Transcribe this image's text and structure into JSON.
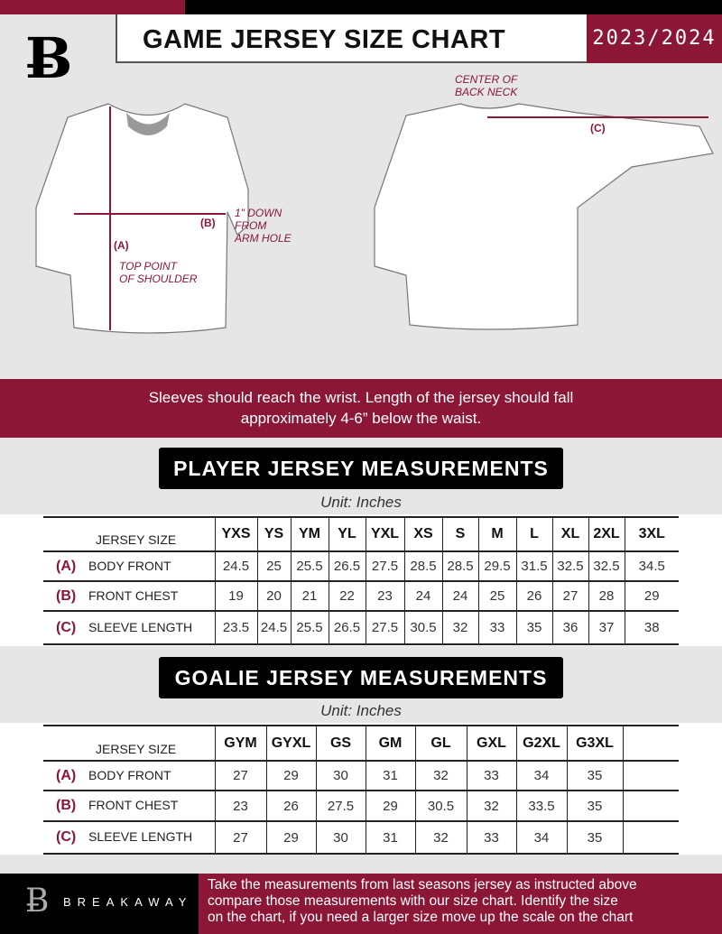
{
  "header": {
    "title": "GAME JERSEY SIZE CHART",
    "season": "2023/2024",
    "logo_letter": "B"
  },
  "diagram": {
    "label_a": "(A)",
    "label_a_note": [
      "TOP POINT",
      "OF SHOULDER"
    ],
    "label_b": "(B)",
    "label_b_note": [
      "1\" DOWN",
      "FROM",
      "ARM HOLE"
    ],
    "label_c": "(C)",
    "label_c_note": [
      "CENTER OF",
      "BACK NECK"
    ]
  },
  "note": [
    "Sleeves should reach the wrist. Length of the jersey should fall",
    "approximately 4-6” below the waist."
  ],
  "player": {
    "title": "PLAYER JERSEY MEASUREMENTS",
    "unit": "Unit: Inches",
    "size_header": "JERSEY SIZE",
    "sizes": [
      "YXS",
      "YS",
      "YM",
      "YL",
      "YXL",
      "XS",
      "S",
      "M",
      "L",
      "XL",
      "2XL",
      "3XL"
    ],
    "rows": [
      {
        "letter": "(A)",
        "label": "BODY FRONT",
        "values": [
          "24.5",
          "25",
          "25.5",
          "26.5",
          "27.5",
          "28.5",
          "28.5",
          "29.5",
          "31.5",
          "32.5",
          "32.5",
          "34.5"
        ]
      },
      {
        "letter": "(B)",
        "label": "FRONT CHEST",
        "values": [
          "19",
          "20",
          "21",
          "22",
          "23",
          "24",
          "24",
          "25",
          "26",
          "27",
          "28",
          "29"
        ]
      },
      {
        "letter": "(C)",
        "label": "SLEEVE LENGTH",
        "values": [
          "23.5",
          "24.5",
          "25.5",
          "26.5",
          "27.5",
          "30.5",
          "32",
          "33",
          "35",
          "36",
          "37",
          "38"
        ]
      }
    ]
  },
  "goalie": {
    "title": "GOALIE JERSEY MEASUREMENTS",
    "unit": "Unit: Inches",
    "size_header": "JERSEY SIZE",
    "sizes": [
      "GYM",
      "GYXL",
      "GS",
      "GM",
      "GL",
      "GXL",
      "G2XL",
      "G3XL",
      ""
    ],
    "rows": [
      {
        "letter": "(A)",
        "label": "BODY FRONT",
        "values": [
          "27",
          "29",
          "30",
          "31",
          "32",
          "33",
          "34",
          "35",
          ""
        ]
      },
      {
        "letter": "(B)",
        "label": "FRONT CHEST",
        "values": [
          "23",
          "26",
          "27.5",
          "29",
          "30.5",
          "32",
          "33.5",
          "35",
          ""
        ]
      },
      {
        "letter": "(C)",
        "label": "SLEEVE LENGTH",
        "values": [
          "27",
          "29",
          "30",
          "31",
          "32",
          "33",
          "34",
          "35",
          ""
        ]
      }
    ]
  },
  "footer": {
    "brand": "BREAKAWAY",
    "text": [
      "Take the measurements from last seasons jersey as instructed above",
      "compare those measurements  with our size chart. Identify the size",
      "on the chart, if you need a larger size move up the scale on the chart"
    ]
  },
  "colors": {
    "accent": "#8b1636",
    "dark": "#000000",
    "background": "#e6e6e7"
  }
}
